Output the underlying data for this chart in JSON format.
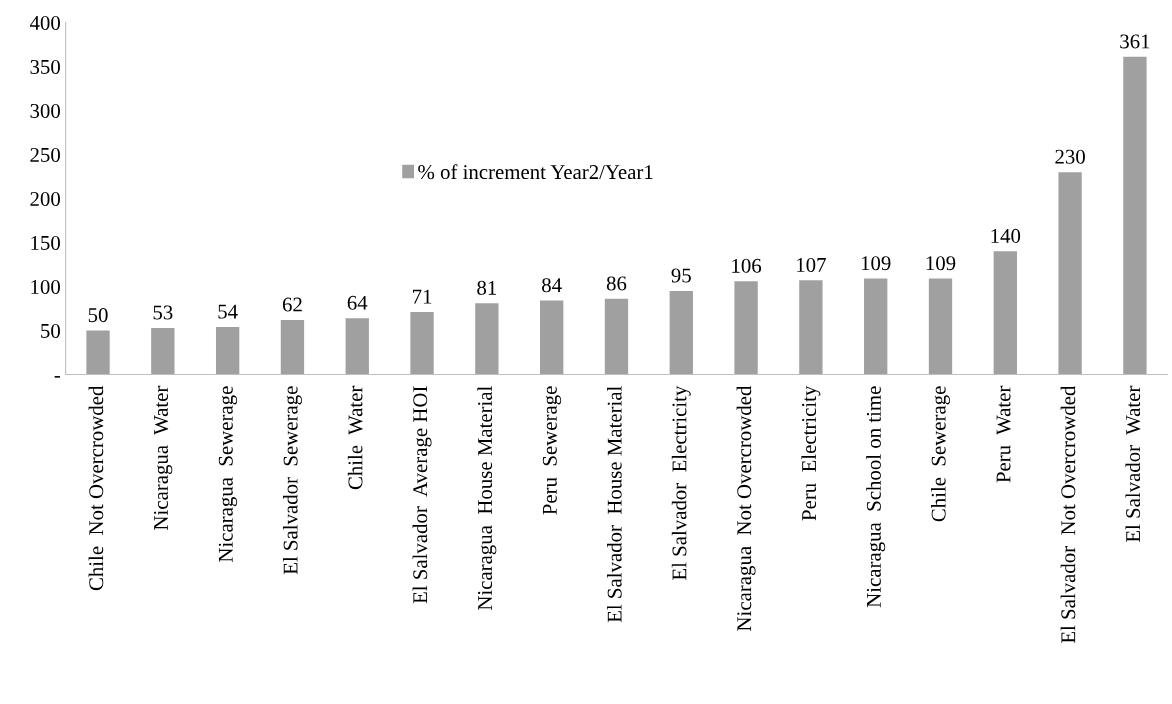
{
  "chart_data": {
    "type": "bar",
    "categories": [
      "Chile  Not Overcrowded",
      "Nicaragua  Water",
      "Nicaragua  Sewerage",
      "El Salvador  Sewerage",
      "Chile  Water",
      "El Salvador  Average HOI",
      "Nicaragua  House Material",
      "Peru  Sewerage",
      "El Salvador  House Material",
      "El Salvador  Electricity",
      "Nicaragua  Not Overcrowded",
      "Peru  Electricity",
      "Nicaragua  School on time",
      "Chile  Sewerage",
      "Peru  Water",
      "El Salvador  Not Overcrowded",
      "El Salvador  Water"
    ],
    "series": [
      {
        "name": "% of increment Year2/Year1",
        "color": "#a0a0a0",
        "values": [
          50,
          53,
          54,
          62,
          64,
          71,
          81,
          84,
          86,
          95,
          106,
          107,
          109,
          109,
          140,
          230,
          361
        ]
      }
    ],
    "ylim": [
      0,
      400
    ],
    "yticks": [
      {
        "value": 0,
        "label": "-"
      },
      50,
      100,
      150,
      200,
      250,
      300,
      350,
      400
    ],
    "data_labels": true,
    "grid": false,
    "legend": "center"
  }
}
